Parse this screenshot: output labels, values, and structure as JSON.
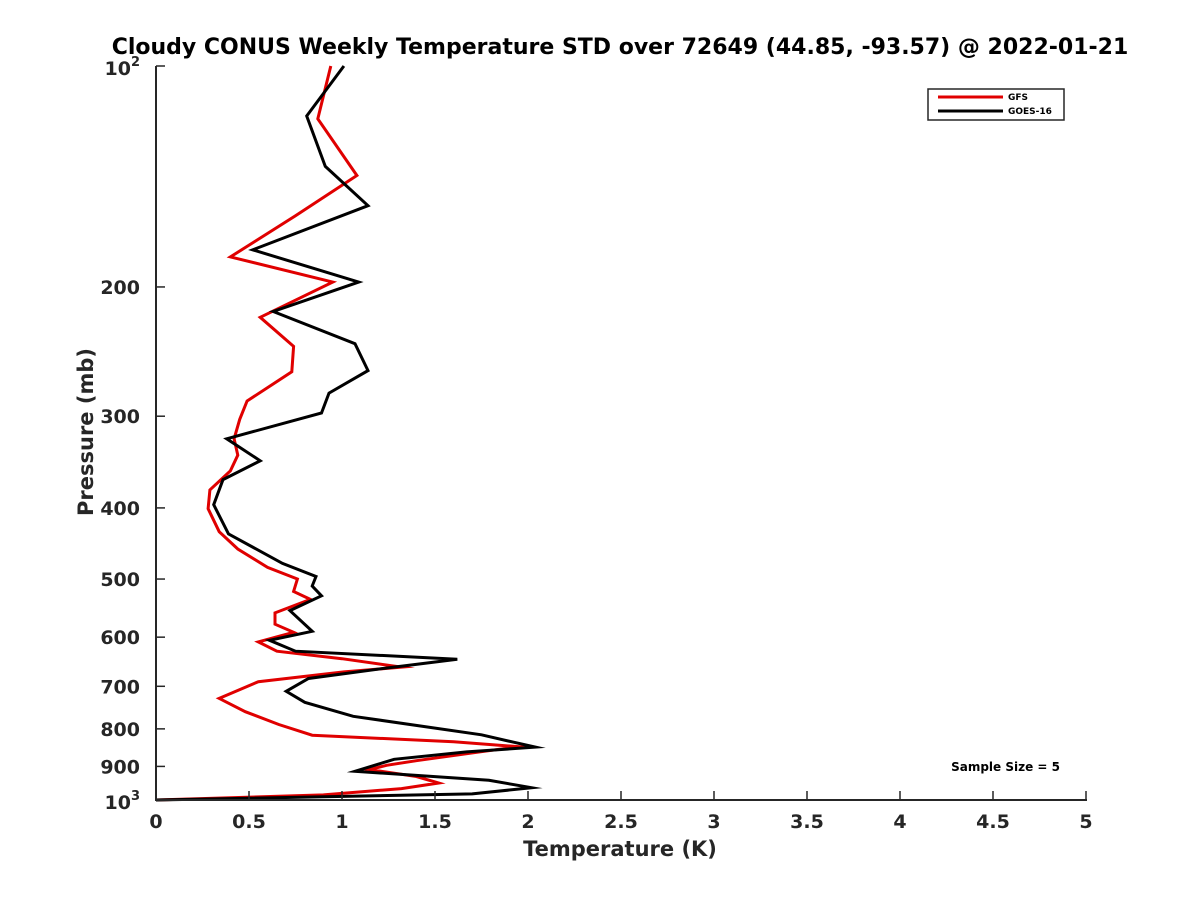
{
  "chart_data": {
    "type": "line",
    "title": "Cloudy CONUS Weekly Temperature STD over 72649 (44.85, -93.57) @ 2022-01-21",
    "xlabel": "Temperature (K)",
    "ylabel": "Pressure (mb)",
    "xlim": [
      0,
      5
    ],
    "ylim": [
      1000,
      100
    ],
    "yscale": "log",
    "grid": false,
    "legend_position": "top-right",
    "x_ticks": [
      "0",
      "0.5",
      "1",
      "1.5",
      "2",
      "2.5",
      "3",
      "3.5",
      "4",
      "4.5",
      "5"
    ],
    "y_ticks": [
      {
        "value": 100,
        "base": "10",
        "exp": "2"
      },
      {
        "value": 200,
        "label": "200"
      },
      {
        "value": 300,
        "label": "300"
      },
      {
        "value": 400,
        "label": "400"
      },
      {
        "value": 500,
        "label": "500"
      },
      {
        "value": 600,
        "label": "600"
      },
      {
        "value": 700,
        "label": "700"
      },
      {
        "value": 800,
        "label": "800"
      },
      {
        "value": 900,
        "label": "900"
      },
      {
        "value": 1000,
        "base": "10",
        "exp": "3"
      }
    ],
    "annotation": "Sample Size = 5",
    "series": [
      {
        "name": "GFS",
        "color": "#e00000",
        "points": [
          [
            0.94,
            100
          ],
          [
            0.87,
            118
          ],
          [
            1.08,
            141
          ],
          [
            0.75,
            160
          ],
          [
            0.4,
            182
          ],
          [
            0.95,
            197
          ],
          [
            0.56,
            220
          ],
          [
            0.74,
            241
          ],
          [
            0.73,
            261
          ],
          [
            0.49,
            286
          ],
          [
            0.45,
            303
          ],
          [
            0.42,
            322
          ],
          [
            0.44,
            339
          ],
          [
            0.4,
            356
          ],
          [
            0.29,
            378
          ],
          [
            0.28,
            401
          ],
          [
            0.34,
            431
          ],
          [
            0.44,
            455
          ],
          [
            0.6,
            482
          ],
          [
            0.76,
            500
          ],
          [
            0.74,
            520
          ],
          [
            0.83,
            533
          ],
          [
            0.64,
            556
          ],
          [
            0.64,
            576
          ],
          [
            0.74,
            591
          ],
          [
            0.55,
            609
          ],
          [
            0.65,
            627
          ],
          [
            1.0,
            642
          ],
          [
            1.32,
            659
          ],
          [
            1.01,
            669
          ],
          [
            0.55,
            690
          ],
          [
            0.34,
            727
          ],
          [
            0.48,
            758
          ],
          [
            0.66,
            789
          ],
          [
            0.84,
            816
          ],
          [
            1.6,
            833
          ],
          [
            1.95,
            846
          ],
          [
            1.75,
            859
          ],
          [
            1.4,
            884
          ],
          [
            1.24,
            897
          ],
          [
            1.15,
            909
          ],
          [
            1.4,
            929
          ],
          [
            1.52,
            948
          ],
          [
            1.32,
            965
          ],
          [
            0.9,
            984
          ],
          [
            0.0,
            1000
          ]
        ]
      },
      {
        "name": "GOES-16",
        "color": "#000000",
        "points": [
          [
            1.01,
            100
          ],
          [
            0.81,
            117
          ],
          [
            0.91,
            137
          ],
          [
            1.14,
            155
          ],
          [
            0.52,
            178
          ],
          [
            1.09,
            197
          ],
          [
            0.63,
            216
          ],
          [
            1.07,
            239
          ],
          [
            1.14,
            260
          ],
          [
            0.93,
            279
          ],
          [
            0.89,
            297
          ],
          [
            0.38,
            322
          ],
          [
            0.56,
            345
          ],
          [
            0.36,
            366
          ],
          [
            0.31,
            396
          ],
          [
            0.39,
            434
          ],
          [
            0.68,
            476
          ],
          [
            0.86,
            496
          ],
          [
            0.84,
            511
          ],
          [
            0.89,
            527
          ],
          [
            0.72,
            552
          ],
          [
            0.84,
            589
          ],
          [
            0.61,
            606
          ],
          [
            0.75,
            627
          ],
          [
            1.62,
            643
          ],
          [
            1.22,
            662
          ],
          [
            0.82,
            683
          ],
          [
            0.7,
            711
          ],
          [
            0.8,
            736
          ],
          [
            1.06,
            769
          ],
          [
            1.75,
            815
          ],
          [
            1.92,
            834
          ],
          [
            2.04,
            847
          ],
          [
            1.67,
            860
          ],
          [
            1.28,
            880
          ],
          [
            1.07,
            914
          ],
          [
            1.79,
            940
          ],
          [
            2.02,
            962
          ],
          [
            1.7,
            981
          ],
          [
            0.0,
            1000
          ]
        ]
      }
    ]
  }
}
